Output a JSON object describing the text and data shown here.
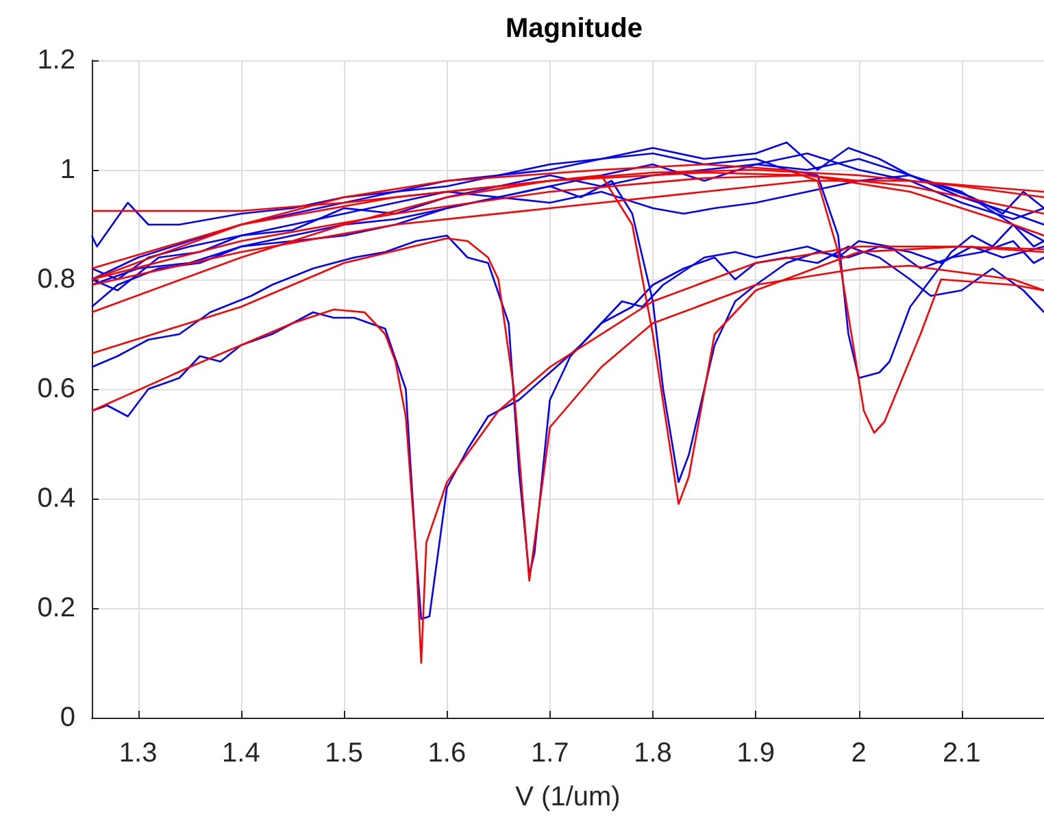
{
  "chart_data": {
    "type": "line",
    "title": "Magnitude",
    "xlabel": "V (1/um)",
    "xlim": [
      1.255,
      2.18
    ],
    "xticks": [
      1.3,
      1.4,
      1.5,
      1.6,
      1.7,
      1.8,
      1.9,
      2,
      2.1
    ],
    "ylim": [
      0,
      1.2
    ],
    "yticks": [
      0,
      0.2,
      0.4,
      0.6,
      0.8,
      1,
      1.2
    ],
    "grid": true,
    "series": [
      {
        "color": "#0000ff",
        "x": [
          1.255,
          1.27,
          1.29,
          1.31,
          1.34,
          1.36,
          1.38,
          1.4,
          1.43,
          1.47,
          1.49,
          1.51,
          1.54,
          1.56,
          1.57,
          1.575,
          1.583,
          1.6,
          1.62,
          1.64,
          1.67,
          1.7,
          1.73,
          1.77,
          1.79,
          1.81,
          1.85,
          1.88,
          1.9,
          1.95,
          1.98,
          2.0,
          2.03,
          2.06,
          2.09,
          2.12,
          2.15,
          2.17,
          2.18
        ],
        "values": [
          0.56,
          0.57,
          0.55,
          0.6,
          0.62,
          0.66,
          0.65,
          0.68,
          0.7,
          0.74,
          0.73,
          0.73,
          0.71,
          0.6,
          0.3,
          0.18,
          0.185,
          0.42,
          0.49,
          0.55,
          0.58,
          0.63,
          0.68,
          0.76,
          0.75,
          0.79,
          0.84,
          0.85,
          0.84,
          0.86,
          0.84,
          0.87,
          0.86,
          0.82,
          0.84,
          0.85,
          0.87,
          0.83,
          0.84
        ]
      },
      {
        "color": "#0000ff",
        "x": [
          1.255,
          1.28,
          1.31,
          1.34,
          1.37,
          1.41,
          1.43,
          1.47,
          1.51,
          1.54,
          1.57,
          1.6,
          1.62,
          1.64,
          1.66,
          1.67,
          1.68,
          1.685,
          1.7,
          1.72,
          1.75,
          1.78,
          1.8,
          1.83,
          1.86,
          1.88,
          1.9,
          1.93,
          1.96,
          1.99,
          2.02,
          2.05,
          2.07,
          2.1,
          2.13,
          2.16,
          2.18
        ],
        "values": [
          0.64,
          0.66,
          0.69,
          0.7,
          0.74,
          0.77,
          0.79,
          0.82,
          0.84,
          0.85,
          0.87,
          0.88,
          0.84,
          0.83,
          0.72,
          0.45,
          0.26,
          0.3,
          0.58,
          0.66,
          0.72,
          0.75,
          0.79,
          0.82,
          0.84,
          0.8,
          0.83,
          0.84,
          0.83,
          0.86,
          0.84,
          0.8,
          0.77,
          0.78,
          0.82,
          0.78,
          0.74
        ]
      },
      {
        "color": "#0000ff",
        "x": [
          1.255,
          1.28,
          1.32,
          1.36,
          1.4,
          1.45,
          1.5,
          1.55,
          1.6,
          1.65,
          1.7,
          1.73,
          1.76,
          1.78,
          1.8,
          1.81,
          1.825,
          1.835,
          1.86,
          1.88,
          1.9,
          1.93,
          1.96,
          1.99,
          2.02,
          2.05,
          2.08,
          2.11,
          2.14,
          2.18
        ],
        "values": [
          0.75,
          0.79,
          0.82,
          0.83,
          0.86,
          0.87,
          0.88,
          0.9,
          0.93,
          0.95,
          0.97,
          0.95,
          0.98,
          0.92,
          0.76,
          0.6,
          0.43,
          0.48,
          0.68,
          0.76,
          0.79,
          0.83,
          0.85,
          0.84,
          0.86,
          0.85,
          0.83,
          0.86,
          0.84,
          0.86
        ]
      },
      {
        "color": "#0000ff",
        "x": [
          1.255,
          1.3,
          1.35,
          1.4,
          1.45,
          1.5,
          1.55,
          1.6,
          1.65,
          1.7,
          1.75,
          1.8,
          1.85,
          1.9,
          1.93,
          1.96,
          1.98,
          1.99,
          2.0,
          2.02,
          2.03,
          2.05,
          2.07,
          2.09,
          2.11,
          2.13,
          2.15,
          2.17,
          2.18
        ],
        "values": [
          0.8,
          0.84,
          0.87,
          0.9,
          0.92,
          0.94,
          0.96,
          0.97,
          0.99,
          1.0,
          1.02,
          1.03,
          1.01,
          1.02,
          1.0,
          0.99,
          0.88,
          0.7,
          0.62,
          0.63,
          0.65,
          0.75,
          0.8,
          0.85,
          0.88,
          0.86,
          0.9,
          0.86,
          0.87
        ]
      },
      {
        "color": "#0000ff",
        "x": [
          1.255,
          1.26,
          1.29,
          1.31,
          1.34,
          1.37,
          1.4,
          1.45,
          1.5,
          1.55,
          1.6,
          1.65,
          1.7,
          1.75,
          1.8,
          1.85,
          1.9,
          1.93,
          1.96,
          1.99,
          2.02,
          2.05,
          2.08,
          2.11,
          2.14,
          2.16,
          2.18
        ],
        "values": [
          0.88,
          0.86,
          0.94,
          0.9,
          0.9,
          0.91,
          0.92,
          0.93,
          0.95,
          0.96,
          0.98,
          0.99,
          1.01,
          1.02,
          1.04,
          1.02,
          1.03,
          1.05,
          1.0,
          1.04,
          1.02,
          0.99,
          0.97,
          0.95,
          0.92,
          0.96,
          0.93
        ]
      },
      {
        "color": "#0000ff",
        "x": [
          1.255,
          1.28,
          1.31,
          1.35,
          1.4,
          1.45,
          1.5,
          1.55,
          1.6,
          1.65,
          1.7,
          1.75,
          1.8,
          1.85,
          1.9,
          1.95,
          2.0,
          2.05,
          2.1,
          2.15,
          2.18
        ],
        "values": [
          0.82,
          0.8,
          0.84,
          0.86,
          0.88,
          0.9,
          0.92,
          0.94,
          0.96,
          0.95,
          0.97,
          0.99,
          1.01,
          0.98,
          1.01,
          1.03,
          1.0,
          0.98,
          0.94,
          0.91,
          0.93
        ]
      },
      {
        "color": "#0000ff",
        "x": [
          1.255,
          1.3,
          1.35,
          1.4,
          1.45,
          1.5,
          1.55,
          1.6,
          1.65,
          1.7,
          1.75,
          1.8,
          1.83,
          1.86,
          1.9,
          1.95,
          2.0,
          2.05,
          2.1,
          2.15,
          2.18
        ],
        "values": [
          0.79,
          0.82,
          0.83,
          0.86,
          0.88,
          0.9,
          0.91,
          0.93,
          0.95,
          0.94,
          0.96,
          0.93,
          0.92,
          0.93,
          0.94,
          0.96,
          0.98,
          0.99,
          0.95,
          0.92,
          0.9
        ]
      },
      {
        "color": "#0000ff",
        "x": [
          1.255,
          1.28,
          1.32,
          1.36,
          1.4,
          1.45,
          1.5,
          1.55,
          1.6,
          1.65,
          1.7,
          1.75,
          1.8,
          1.85,
          1.9,
          1.95,
          2.0,
          2.05,
          2.1,
          2.15,
          2.18
        ],
        "values": [
          0.8,
          0.78,
          0.84,
          0.85,
          0.88,
          0.89,
          0.93,
          0.92,
          0.95,
          0.97,
          0.99,
          0.97,
          0.99,
          1.0,
          1.01,
          1.0,
          1.02,
          0.99,
          0.96,
          0.9,
          0.87
        ]
      },
      {
        "color": "#ff0000",
        "x": [
          1.255,
          1.35,
          1.45,
          1.49,
          1.52,
          1.54,
          1.55,
          1.56,
          1.57,
          1.575,
          1.58,
          1.6,
          1.65,
          1.7,
          1.8,
          1.9,
          2.0,
          2.1,
          2.18
        ],
        "values": [
          0.56,
          0.64,
          0.72,
          0.745,
          0.74,
          0.7,
          0.65,
          0.55,
          0.3,
          0.1,
          0.32,
          0.43,
          0.56,
          0.64,
          0.76,
          0.83,
          0.86,
          0.86,
          0.85
        ]
      },
      {
        "color": "#ff0000",
        "x": [
          1.255,
          1.4,
          1.5,
          1.6,
          1.62,
          1.64,
          1.65,
          1.665,
          1.68,
          1.7,
          1.75,
          1.8,
          1.9,
          2.0,
          2.05,
          2.15,
          2.18
        ],
        "values": [
          0.665,
          0.75,
          0.83,
          0.875,
          0.87,
          0.84,
          0.8,
          0.6,
          0.25,
          0.53,
          0.64,
          0.72,
          0.79,
          0.82,
          0.825,
          0.8,
          0.78
        ]
      },
      {
        "color": "#ff0000",
        "x": [
          1.255,
          1.4,
          1.5,
          1.6,
          1.7,
          1.75,
          1.78,
          1.8,
          1.825,
          1.835,
          1.86,
          1.9,
          2.0,
          2.1,
          2.18
        ],
        "values": [
          0.74,
          0.84,
          0.9,
          0.95,
          0.98,
          0.99,
          0.9,
          0.7,
          0.39,
          0.44,
          0.7,
          0.78,
          0.85,
          0.86,
          0.855
        ]
      },
      {
        "color": "#ff0000",
        "x": [
          1.255,
          1.4,
          1.5,
          1.6,
          1.75,
          1.85,
          1.93,
          1.96,
          1.98,
          2.005,
          2.015,
          2.025,
          2.06,
          2.08,
          2.15,
          2.18
        ],
        "values": [
          0.8,
          0.9,
          0.95,
          0.98,
          1.0,
          1.01,
          1.0,
          0.98,
          0.85,
          0.56,
          0.52,
          0.54,
          0.7,
          0.8,
          0.79,
          0.78
        ]
      },
      {
        "color": "#ff0000",
        "x": [
          1.255,
          1.4,
          1.5,
          1.6,
          1.7,
          1.8,
          1.9,
          2.0,
          2.1,
          2.18
        ],
        "values": [
          0.925,
          0.925,
          0.94,
          0.96,
          0.98,
          0.995,
          1.0,
          0.99,
          0.97,
          0.95
        ]
      },
      {
        "color": "#ff0000",
        "x": [
          1.255,
          1.4,
          1.55,
          1.7,
          1.85,
          1.95,
          2.05,
          2.15,
          2.18
        ],
        "values": [
          0.82,
          0.9,
          0.95,
          0.98,
          0.995,
          0.99,
          0.96,
          0.9,
          0.88
        ]
      },
      {
        "color": "#ff0000",
        "x": [
          1.255,
          1.4,
          1.55,
          1.7,
          1.85,
          1.95,
          2.05,
          2.18
        ],
        "values": [
          0.79,
          0.85,
          0.9,
          0.93,
          0.96,
          0.98,
          0.98,
          0.96
        ]
      },
      {
        "color": "#ff0000",
        "x": [
          1.255,
          1.4,
          1.55,
          1.7,
          1.85,
          1.95,
          2.05,
          2.18
        ],
        "values": [
          0.8,
          0.87,
          0.92,
          0.96,
          0.985,
          0.99,
          0.97,
          0.92
        ]
      }
    ]
  }
}
